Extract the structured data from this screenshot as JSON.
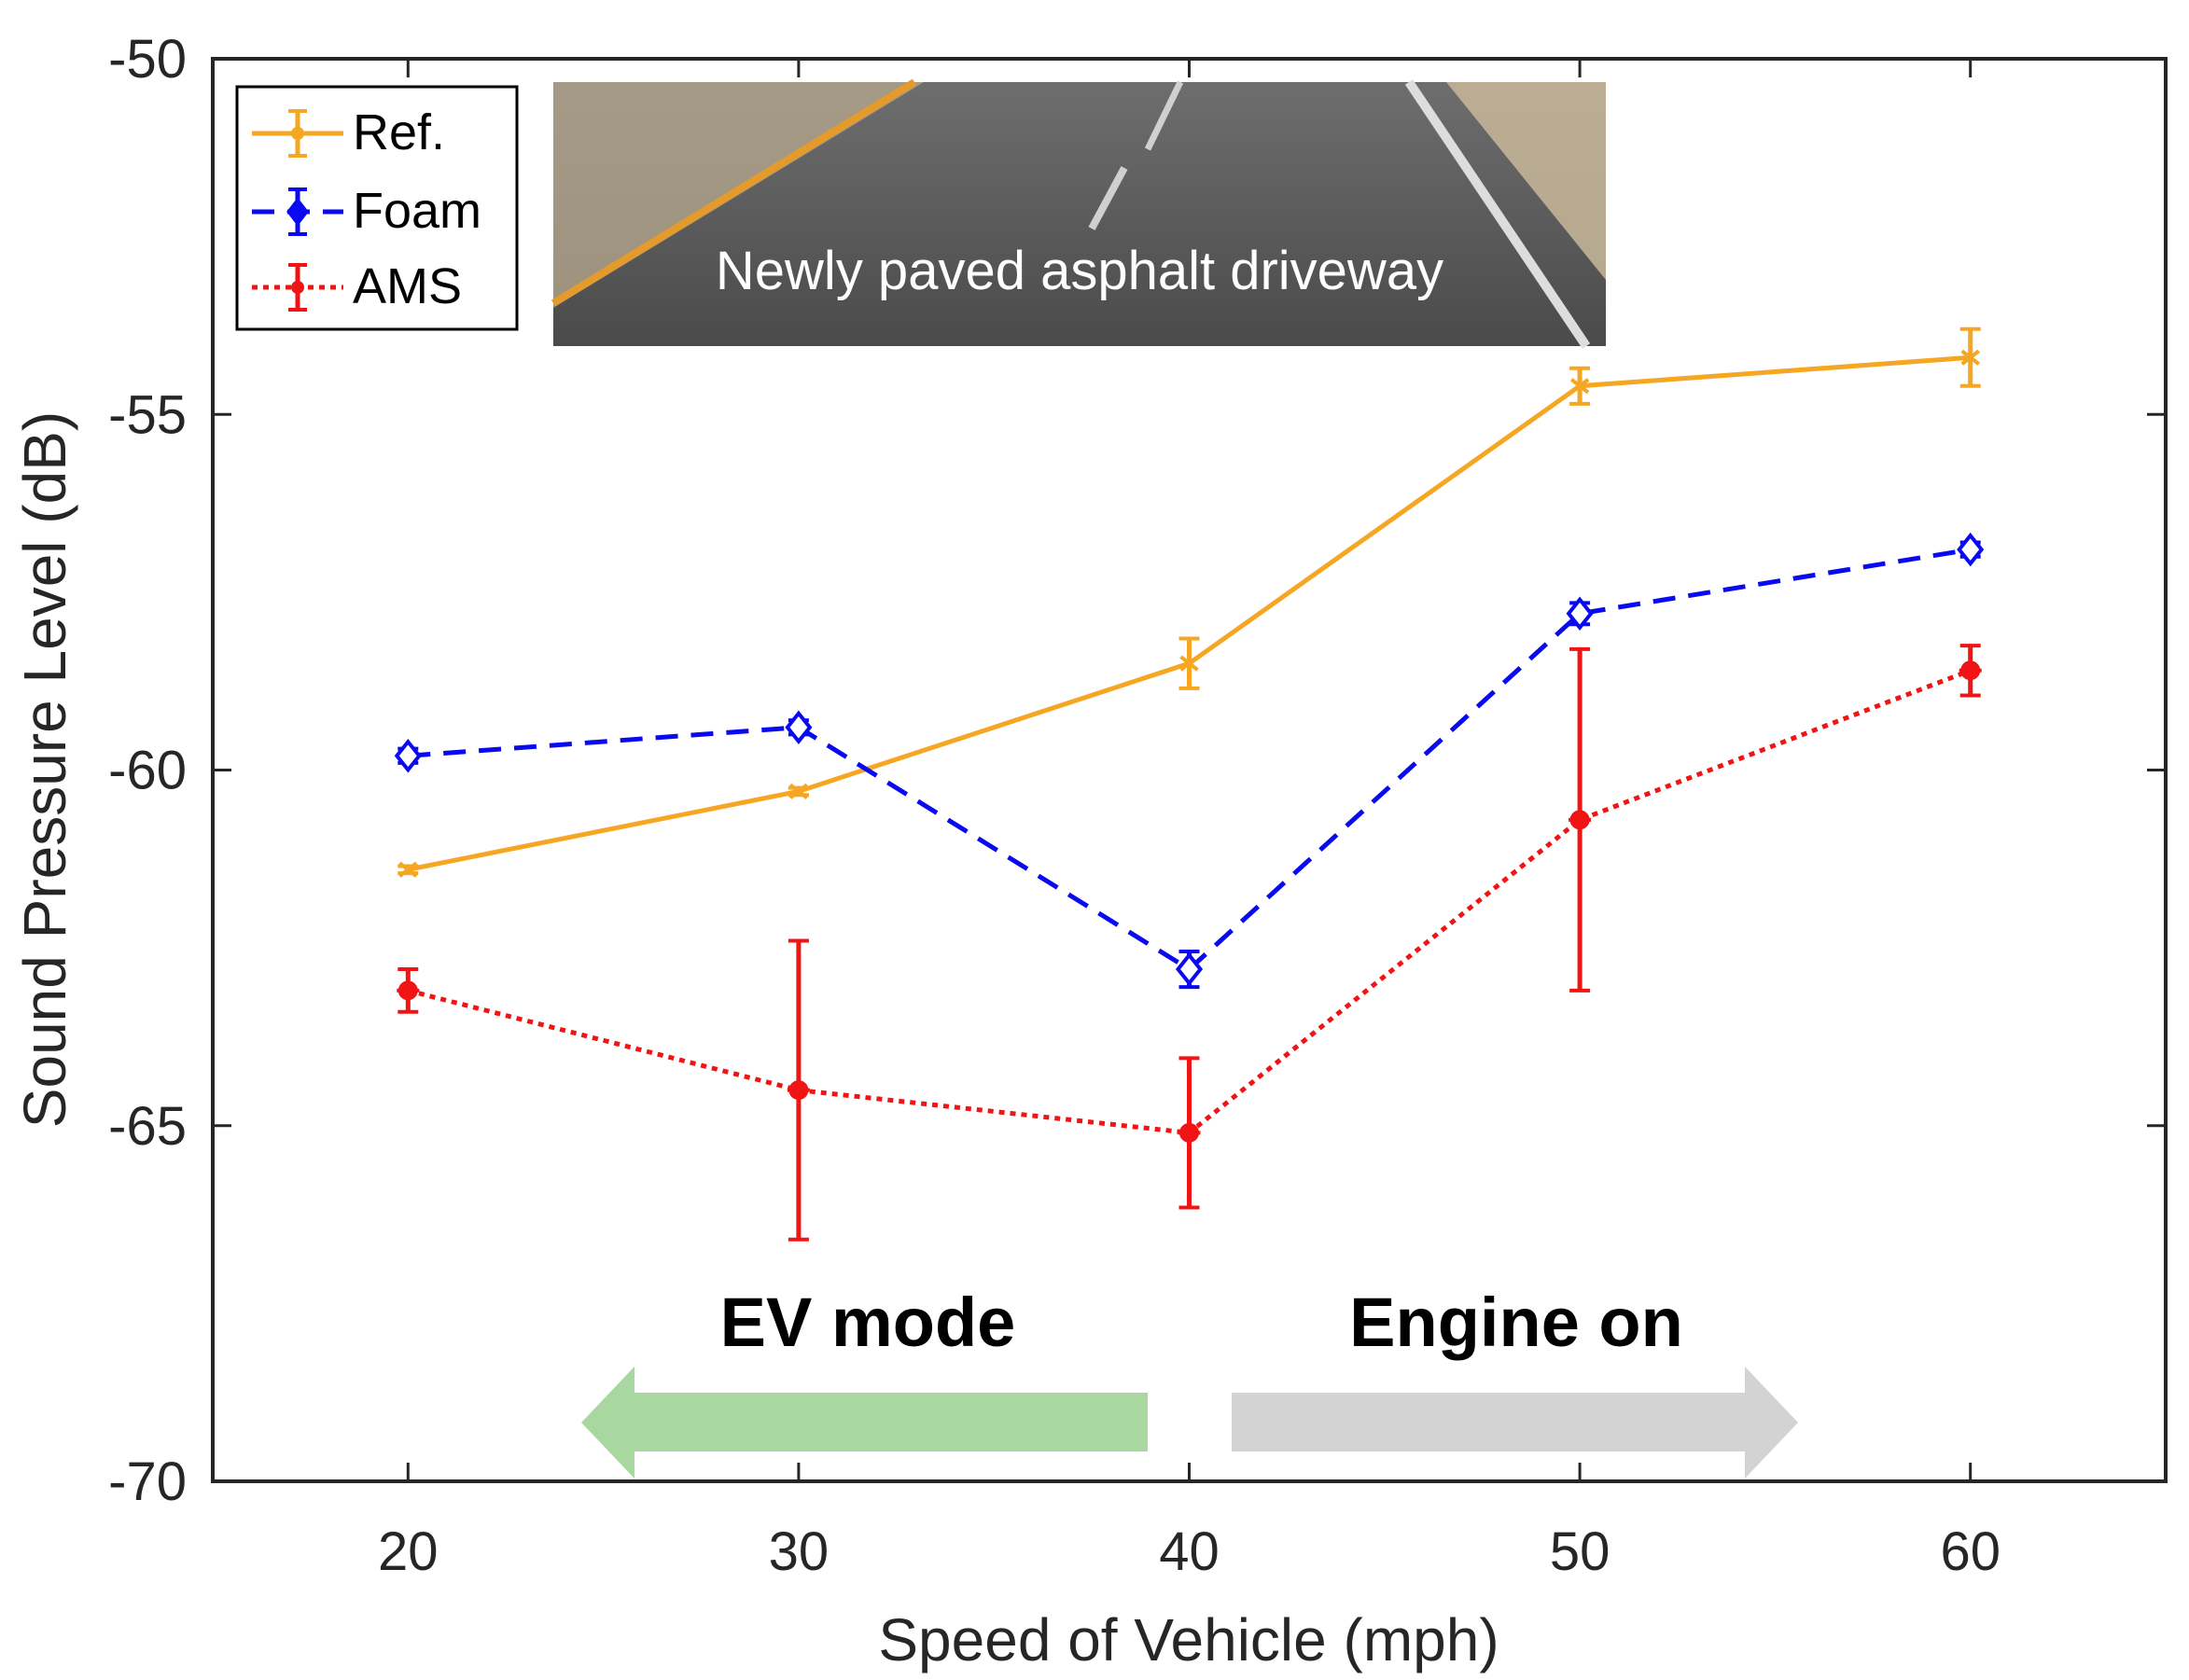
{
  "chart_data": {
    "type": "line",
    "title": "",
    "xlabel": "Speed of Vehicle (mph)",
    "ylabel": "Sound Pressure Level (dB)",
    "xlim": [
      15,
      65
    ],
    "ylim": [
      -70,
      -50
    ],
    "xticks": [
      20,
      30,
      40,
      50,
      60
    ],
    "yticks": [
      -50,
      -55,
      -60,
      -65,
      -70
    ],
    "xtick_labels": [
      "20",
      "30",
      "40",
      "50",
      "60"
    ],
    "ytick_labels": [
      "-50",
      "-55",
      "-60",
      "-65",
      "-70"
    ],
    "x": [
      20,
      30,
      40,
      50,
      60
    ],
    "legend_position": "top-left",
    "series": [
      {
        "name": "Ref.",
        "color": "#F5A623",
        "line": "solid",
        "marker": "x",
        "values": [
          -61.4,
          -60.3,
          -58.5,
          -54.6,
          -54.2
        ],
        "errors": [
          0.05,
          0.05,
          0.35,
          0.25,
          0.4
        ]
      },
      {
        "name": "Foam",
        "color": "#0A0AF0",
        "line": "dashed",
        "marker": "diamond",
        "values": [
          -59.8,
          -59.4,
          -62.8,
          -57.8,
          -56.9
        ],
        "errors": [
          0.1,
          0.1,
          0.25,
          0.15,
          0.1
        ]
      },
      {
        "name": "AMS",
        "color": "#F01414",
        "line": "dotted",
        "marker": "star",
        "values": [
          -63.1,
          -64.5,
          -65.1,
          -60.7,
          -58.6
        ],
        "errors": [
          0.3,
          2.1,
          1.05,
          2.4,
          0.35
        ]
      }
    ],
    "annotations": {
      "ev_mode": "EV mode",
      "engine_on": "Engine on",
      "photo_caption": "Newly paved asphalt driveway"
    },
    "arrow_colors": {
      "ev": "#A8D8A0",
      "engine": "#D3D3D3"
    }
  }
}
